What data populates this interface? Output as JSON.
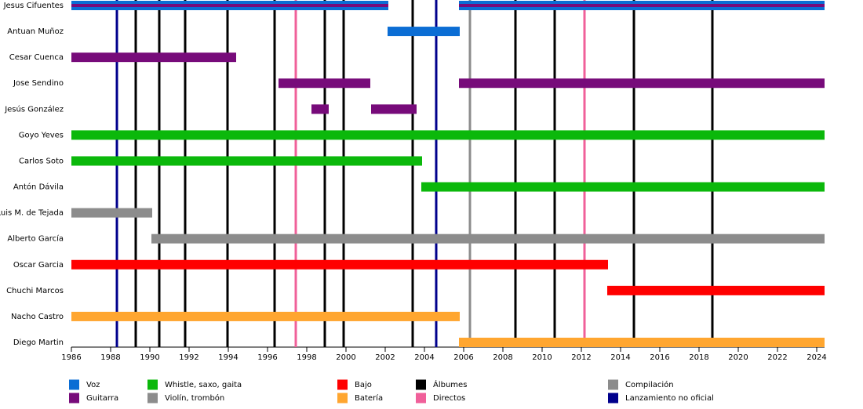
{
  "chart_data": {
    "type": "timeline",
    "categories": [
      "Jesus Cifuentes",
      "Antuan Muñoz",
      "Cesar Cuenca",
      "Jose Sendino",
      "Jesús González",
      "Goyo Yeves",
      "Carlos Soto",
      "Antón Dávila",
      "Luis M. de Tejada",
      "Alberto García",
      "Oscar Garcia",
      "Chuchi Marcos",
      "Nacho Castro",
      "Diego Martin"
    ],
    "series": [
      {
        "name": "Voz",
        "color": "#0b6dd4",
        "values": [
          [
            [
              1986,
              2002.16
            ],
            [
              2005.76,
              2024.4
            ]
          ],
          [
            [
              2002.12,
              2005.8
            ]
          ],
          [],
          [],
          [],
          [],
          [],
          [],
          [],
          [],
          [],
          [],
          [],
          []
        ]
      },
      {
        "name": "Guitarra",
        "color": "#770b7a",
        "values": [
          [
            [
              1986,
              2002.16
            ],
            [
              2005.76,
              2024.4
            ]
          ],
          [],
          [
            [
              1986,
              1994.4
            ]
          ],
          [
            [
              1996.56,
              2001.24
            ],
            [
              2005.76,
              2024.4
            ]
          ],
          [
            [
              1998.24,
              1999.12
            ],
            [
              2001.28,
              2003.6
            ]
          ],
          [],
          [],
          [],
          [],
          [],
          [],
          [],
          [],
          []
        ]
      },
      {
        "name": "Whistle, saxo, gaita",
        "color": "#0bb80b",
        "values": [
          [],
          [],
          [],
          [],
          [],
          [
            [
              1986,
              2024.4
            ]
          ],
          [
            [
              1986,
              2003.88
            ]
          ],
          [
            [
              2003.84,
              2024.4
            ]
          ],
          [],
          [],
          [],
          [],
          [],
          []
        ]
      },
      {
        "name": "Violín, trombón",
        "color": "#8c8c8c",
        "values": [
          [],
          [],
          [],
          [],
          [],
          [],
          [],
          [],
          [
            [
              1986,
              1990.12
            ]
          ],
          [
            [
              1990.08,
              2024.4
            ]
          ],
          [],
          [],
          [],
          []
        ]
      },
      {
        "name": "Bajo",
        "color": "#ff0000",
        "values": [
          [],
          [],
          [],
          [],
          [],
          [],
          [],
          [],
          [],
          [],
          [
            [
              1986,
              2013.36
            ]
          ],
          [
            [
              2013.32,
              2024.4
            ]
          ],
          [],
          []
        ]
      },
      {
        "name": "Batería",
        "color": "#ffa630",
        "values": [
          [],
          [],
          [],
          [],
          [],
          [],
          [],
          [],
          [],
          [],
          [],
          [],
          [
            [
              1986,
              2005.8
            ]
          ],
          [
            [
              2005.76,
              2024.4
            ]
          ]
        ]
      }
    ],
    "events": [
      {
        "name": "Álbumes",
        "color": "#000000",
        "x": [
          1989.28,
          1990.48,
          1991.8,
          1993.96,
          1996.36,
          1998.92,
          1999.88,
          2003.4,
          2008.64,
          2010.64,
          2014.68,
          2018.68
        ]
      },
      {
        "name": "Directos",
        "color": "#f0609a",
        "x": [
          1997.44,
          2012.16
        ]
      },
      {
        "name": "Compilación",
        "color": "#8c8c8c",
        "x": [
          2006.32
        ]
      },
      {
        "name": "Lanzamiento no oficial",
        "color": "#00008c",
        "x": [
          1988.32,
          2004.6
        ]
      }
    ],
    "xlim": [
      1986,
      2024.4
    ],
    "xticks": [
      1986,
      1988,
      1990,
      1992,
      1994,
      1996,
      1998,
      2000,
      2002,
      2004,
      2006,
      2008,
      2010,
      2012,
      2014,
      2016,
      2018,
      2020,
      2022,
      2024
    ]
  }
}
